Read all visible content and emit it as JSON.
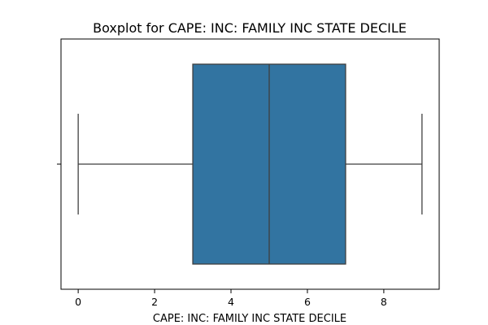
{
  "chart_data": {
    "type": "boxplot",
    "title": "Boxplot for CAPE: INC: FAMILY INC STATE DECILE",
    "xlabel": "CAPE: INC: FAMILY INC STATE DECILE",
    "ylabel": "",
    "orientation": "horizontal",
    "xlim": [
      -0.45,
      9.45
    ],
    "xticks": [
      0,
      2,
      4,
      6,
      8
    ],
    "xtick_labels": [
      "0",
      "2",
      "4",
      "6",
      "8"
    ],
    "grid": false,
    "legend": "none",
    "box": {
      "min": 0,
      "q1": 3,
      "median": 5,
      "q3": 7,
      "max": 9
    },
    "colors": {
      "box_fill": "#3274a1",
      "line": "#3f3f3f",
      "axes": "#000000"
    }
  }
}
